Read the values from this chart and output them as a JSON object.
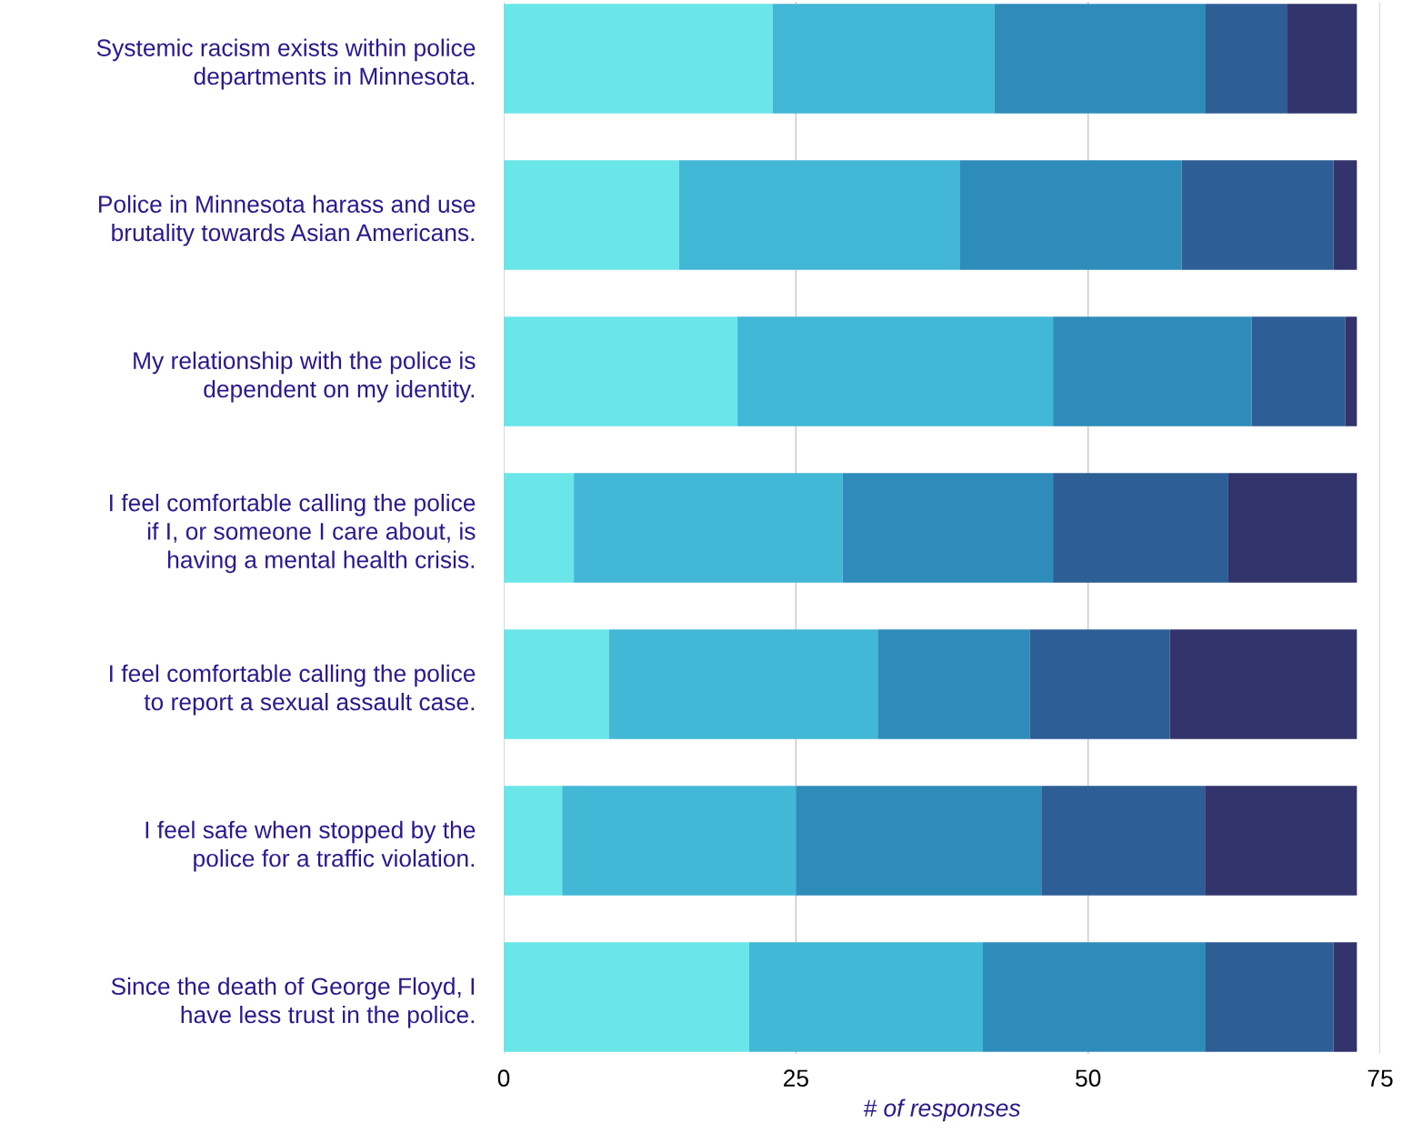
{
  "chart_data": {
    "type": "bar",
    "orientation": "horizontal",
    "stacked": true,
    "categories": [
      "Systemic racism exists within police\ndepartments in Minnesota.",
      "Police in Minnesota harass and use\nbrutality towards Asian Americans.",
      "My relationship with the police is\ndependent on my identity.",
      "I feel comfortable calling the police\nif I, or someone I care about, is\nhaving a mental health crisis.",
      "I feel comfortable calling the police\nto report a sexual assault case.",
      "I feel safe when stopped by the\npolice for a traffic violation.",
      "Since the death of George Floyd, I\nhave less trust in the police."
    ],
    "series": [
      {
        "color": "#6ae5e8",
        "values": [
          23,
          15,
          20,
          6,
          9,
          5,
          21
        ]
      },
      {
        "color": "#42b7d6",
        "values": [
          19,
          24,
          27,
          23,
          23,
          20,
          20
        ]
      },
      {
        "color": "#2e8cba",
        "values": [
          18,
          19,
          17,
          18,
          13,
          21,
          19
        ]
      },
      {
        "color": "#2e5e96",
        "values": [
          7,
          13,
          8,
          15,
          12,
          14,
          11
        ]
      },
      {
        "color": "#32346b",
        "values": [
          6,
          2,
          1,
          11,
          16,
          13,
          2
        ]
      }
    ],
    "xlabel": "# of responses",
    "xlim": [
      0,
      75
    ],
    "xticks": [
      0,
      25,
      50,
      75
    ],
    "grid": "x",
    "legend": false
  }
}
